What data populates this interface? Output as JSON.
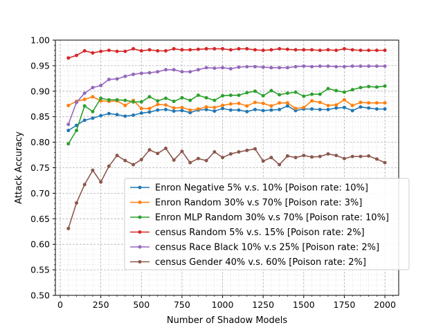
{
  "chart_data": {
    "type": "line",
    "xlabel": "Number of Shadow Models",
    "ylabel": "Attack Accuracy",
    "xlim": [
      -30,
      2085
    ],
    "ylim": [
      0.5,
      1.0
    ],
    "xticks": [
      0,
      250,
      500,
      750,
      1000,
      1250,
      1500,
      1750,
      2000
    ],
    "xtick_labels": [
      "0",
      "250",
      "500",
      "750",
      "1000",
      "1250",
      "1500",
      "1750",
      "2000"
    ],
    "yticks": [
      0.5,
      0.55,
      0.6,
      0.65,
      0.7,
      0.75,
      0.8,
      0.85,
      0.9,
      0.95,
      1.0
    ],
    "ytick_labels": [
      "0.50",
      "0.55",
      "0.60",
      "0.65",
      "0.70",
      "0.75",
      "0.80",
      "0.85",
      "0.90",
      "0.95",
      "1.00"
    ],
    "grid": true,
    "minor_grid": true,
    "legend_position": "lower-right",
    "x": [
      50,
      100,
      150,
      200,
      250,
      300,
      350,
      400,
      450,
      500,
      550,
      600,
      650,
      700,
      750,
      800,
      850,
      900,
      950,
      1000,
      1050,
      1100,
      1150,
      1200,
      1250,
      1300,
      1350,
      1400,
      1450,
      1500,
      1550,
      1600,
      1650,
      1700,
      1750,
      1800,
      1850,
      1900,
      1950,
      2000
    ],
    "series": [
      {
        "name": "Enron Negative 5% v.s. 10% [Poison rate: 10%]",
        "color": "#1f77b4",
        "values": [
          0.823,
          0.833,
          0.843,
          0.847,
          0.852,
          0.856,
          0.854,
          0.851,
          0.853,
          0.857,
          0.859,
          0.863,
          0.864,
          0.861,
          0.862,
          0.858,
          0.863,
          0.864,
          0.861,
          0.866,
          0.863,
          0.863,
          0.86,
          0.864,
          0.862,
          0.863,
          0.864,
          0.871,
          0.862,
          0.865,
          0.865,
          0.864,
          0.864,
          0.867,
          0.868,
          0.862,
          0.869,
          0.867,
          0.865,
          0.865
        ]
      },
      {
        "name": "Enron Random 30% v.s 70% [Poison rate: 3%]",
        "color": "#ff7f0e",
        "values": [
          0.872,
          0.88,
          0.884,
          0.889,
          0.881,
          0.88,
          0.881,
          0.872,
          0.882,
          0.866,
          0.866,
          0.874,
          0.873,
          0.867,
          0.868,
          0.863,
          0.865,
          0.869,
          0.868,
          0.872,
          0.875,
          0.876,
          0.871,
          0.878,
          0.876,
          0.871,
          0.877,
          0.877,
          0.866,
          0.868,
          0.881,
          0.878,
          0.872,
          0.873,
          0.883,
          0.872,
          0.878,
          0.877,
          0.877,
          0.877
        ]
      },
      {
        "name": "Enron MLP Random 30% v.s 70% [Poison rate: 10%]",
        "color": "#2ca02c",
        "values": [
          0.797,
          0.823,
          0.871,
          0.86,
          0.886,
          0.883,
          0.883,
          0.882,
          0.879,
          0.879,
          0.889,
          0.881,
          0.886,
          0.88,
          0.887,
          0.882,
          0.892,
          0.887,
          0.882,
          0.891,
          0.892,
          0.892,
          0.897,
          0.9,
          0.891,
          0.901,
          0.893,
          0.896,
          0.898,
          0.89,
          0.894,
          0.894,
          0.905,
          0.901,
          0.898,
          0.903,
          0.907,
          0.909,
          0.908,
          0.91
        ]
      },
      {
        "name": "census Random 5% v.s. 15% [Poison rate: 2%]",
        "color": "#d62728",
        "values": [
          0.965,
          0.97,
          0.979,
          0.975,
          0.978,
          0.98,
          0.978,
          0.978,
          0.983,
          0.979,
          0.981,
          0.979,
          0.979,
          0.983,
          0.981,
          0.981,
          0.982,
          0.983,
          0.983,
          0.983,
          0.981,
          0.983,
          0.983,
          0.981,
          0.98,
          0.981,
          0.983,
          0.982,
          0.981,
          0.981,
          0.981,
          0.98,
          0.981,
          0.98,
          0.983,
          0.981,
          0.98,
          0.98,
          0.98,
          0.98
        ]
      },
      {
        "name": "census Race Black 10% v.s 25% [Poison rate: 2%]",
        "color": "#9467bd",
        "values": [
          0.835,
          0.878,
          0.896,
          0.907,
          0.911,
          0.923,
          0.924,
          0.929,
          0.933,
          0.935,
          0.936,
          0.938,
          0.942,
          0.942,
          0.938,
          0.938,
          0.942,
          0.946,
          0.945,
          0.946,
          0.944,
          0.947,
          0.948,
          0.948,
          0.947,
          0.946,
          0.946,
          0.946,
          0.948,
          0.949,
          0.948,
          0.949,
          0.949,
          0.948,
          0.948,
          0.949,
          0.949,
          0.949,
          0.949,
          0.949
        ]
      },
      {
        "name": "census Gender 40% v.s. 60% [Poison rate: 2%]",
        "color": "#8c564b",
        "values": [
          0.631,
          0.681,
          0.717,
          0.745,
          0.722,
          0.753,
          0.774,
          0.764,
          0.756,
          0.766,
          0.785,
          0.778,
          0.788,
          0.765,
          0.782,
          0.76,
          0.768,
          0.764,
          0.781,
          0.77,
          0.777,
          0.781,
          0.784,
          0.787,
          0.763,
          0.77,
          0.756,
          0.773,
          0.77,
          0.774,
          0.771,
          0.772,
          0.777,
          0.774,
          0.768,
          0.772,
          0.772,
          0.773,
          0.767,
          0.76
        ]
      }
    ]
  }
}
